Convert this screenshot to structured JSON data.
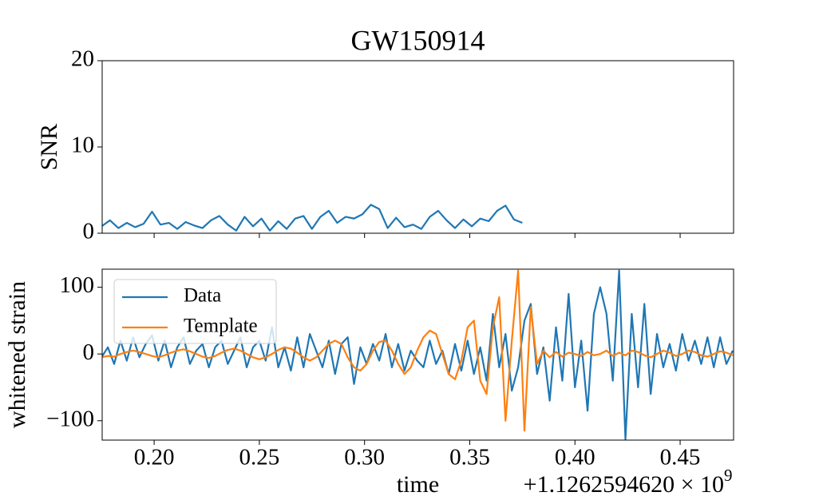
{
  "chart_data": [
    {
      "type": "line",
      "title": "GW150914",
      "ylabel": "SNR",
      "x": [
        0.175,
        0.179,
        0.183,
        0.187,
        0.191,
        0.195,
        0.199,
        0.203,
        0.207,
        0.211,
        0.215,
        0.219,
        0.223,
        0.227,
        0.231,
        0.235,
        0.239,
        0.243,
        0.247,
        0.251,
        0.255,
        0.259,
        0.263,
        0.267,
        0.271,
        0.275,
        0.279,
        0.283,
        0.287,
        0.291,
        0.295,
        0.299,
        0.303,
        0.307,
        0.311,
        0.315,
        0.319,
        0.323,
        0.327,
        0.331,
        0.335,
        0.339,
        0.343,
        0.347,
        0.351,
        0.355,
        0.359,
        0.363,
        0.367,
        0.371,
        0.375
      ],
      "series": [
        {
          "color": "#1f77b4",
          "values": [
            0.8,
            1.5,
            0.6,
            1.2,
            0.7,
            1.1,
            2.5,
            1.0,
            1.2,
            0.5,
            1.3,
            0.9,
            0.6,
            1.5,
            2.0,
            1.0,
            0.3,
            1.9,
            0.8,
            1.7,
            0.3,
            1.4,
            0.5,
            1.7,
            2.0,
            0.5,
            1.9,
            2.6,
            1.2,
            1.9,
            1.7,
            2.2,
            3.3,
            2.8,
            0.6,
            1.8,
            0.7,
            1.0,
            0.5,
            1.9,
            2.6,
            1.5,
            0.6,
            1.6,
            0.8,
            1.7,
            1.4,
            2.6,
            3.2,
            1.6,
            1.2
          ]
        }
      ],
      "xlim": [
        0.1753,
        0.4754
      ],
      "ylim": [
        0,
        20
      ],
      "yticks": [
        0,
        10,
        20
      ]
    },
    {
      "type": "line",
      "ylabel": "whitened strain",
      "xlabel": "time",
      "offset_label": "+1.1262594620 × 10",
      "offset_exponent": "9",
      "x": [
        0.175,
        0.178,
        0.181,
        0.184,
        0.187,
        0.19,
        0.193,
        0.196,
        0.199,
        0.202,
        0.205,
        0.208,
        0.211,
        0.214,
        0.217,
        0.22,
        0.223,
        0.226,
        0.229,
        0.232,
        0.235,
        0.238,
        0.241,
        0.244,
        0.247,
        0.25,
        0.253,
        0.256,
        0.259,
        0.262,
        0.265,
        0.268,
        0.271,
        0.274,
        0.277,
        0.28,
        0.283,
        0.286,
        0.289,
        0.292,
        0.295,
        0.298,
        0.301,
        0.304,
        0.307,
        0.31,
        0.313,
        0.316,
        0.319,
        0.322,
        0.325,
        0.328,
        0.331,
        0.334,
        0.337,
        0.34,
        0.343,
        0.346,
        0.349,
        0.352,
        0.355,
        0.358,
        0.361,
        0.364,
        0.367,
        0.37,
        0.373,
        0.376,
        0.379,
        0.382,
        0.385,
        0.388,
        0.391,
        0.394,
        0.397,
        0.4,
        0.403,
        0.406,
        0.409,
        0.412,
        0.415,
        0.418,
        0.421,
        0.424,
        0.427,
        0.43,
        0.433,
        0.436,
        0.439,
        0.442,
        0.445,
        0.448,
        0.451,
        0.454,
        0.457,
        0.46,
        0.463,
        0.466,
        0.469,
        0.472,
        0.475
      ],
      "series": [
        {
          "name": "Data",
          "color": "#1f77b4",
          "values": [
            -5,
            10,
            -15,
            20,
            -10,
            25,
            -5,
            15,
            28,
            -10,
            20,
            -20,
            10,
            25,
            -15,
            5,
            15,
            -20,
            10,
            20,
            -15,
            5,
            25,
            -20,
            10,
            20,
            -10,
            40,
            -20,
            10,
            -25,
            25,
            -20,
            30,
            5,
            -20,
            20,
            -30,
            15,
            25,
            -45,
            10,
            -15,
            15,
            -10,
            30,
            -20,
            15,
            -25,
            5,
            -10,
            -20,
            20,
            -15,
            5,
            -30,
            15,
            -25,
            20,
            -30,
            10,
            -40,
            60,
            -20,
            30,
            -55,
            -20,
            50,
            75,
            -30,
            10,
            -70,
            40,
            -40,
            90,
            -50,
            20,
            -85,
            60,
            100,
            60,
            -40,
            125,
            -128,
            60,
            -50,
            75,
            -60,
            30,
            -20,
            15,
            -25,
            30,
            -10,
            20,
            -15,
            25,
            -20,
            25,
            -15,
            5
          ]
        },
        {
          "name": "Template",
          "color": "#ff7f0e",
          "values": [
            -5,
            -3,
            -4,
            0,
            3,
            5,
            3,
            0,
            -3,
            -5,
            -2,
            2,
            5,
            7,
            4,
            0,
            -4,
            -6,
            -3,
            2,
            6,
            8,
            5,
            0,
            -5,
            -8,
            -5,
            0,
            6,
            10,
            8,
            2,
            -5,
            -10,
            -5,
            5,
            15,
            20,
            15,
            -5,
            -20,
            -25,
            -15,
            5,
            18,
            20,
            5,
            -15,
            -30,
            -20,
            5,
            25,
            35,
            30,
            0,
            -30,
            -38,
            -10,
            40,
            50,
            -40,
            -60,
            40,
            85,
            -100,
            20,
            125,
            -115,
            70,
            -15,
            5,
            -5,
            3,
            -4,
            2,
            0,
            -3,
            3,
            -2,
            0,
            5,
            -3,
            2,
            -2,
            5,
            3,
            -2,
            -5,
            0,
            5,
            2,
            -3,
            0,
            5,
            3,
            -2,
            -4,
            0,
            4,
            2,
            -2
          ]
        }
      ],
      "xlim": [
        0.1753,
        0.4754
      ],
      "ylim": [
        -129,
        127
      ],
      "yticks": [
        {
          "value": -100,
          "label": "−100"
        },
        0,
        100
      ],
      "xticks": [
        {
          "value": 0.2,
          "label": "0.20"
        },
        {
          "value": 0.25,
          "label": "0.25"
        },
        {
          "value": 0.3,
          "label": "0.30"
        },
        {
          "value": 0.35,
          "label": "0.35"
        },
        {
          "value": 0.4,
          "label": "0.40"
        },
        {
          "value": 0.45,
          "label": "0.45"
        }
      ],
      "legend": "upper left"
    }
  ]
}
